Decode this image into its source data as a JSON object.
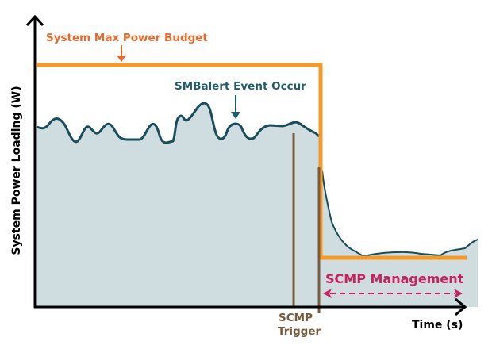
{
  "labels": {
    "y_axis": "System Power Loading (W)",
    "x_axis": "Time (s)",
    "budget": "System Max Power Budget",
    "smbalert": "SMBalert Event Occur",
    "trigger_line1": "SCMP",
    "trigger_line2": "Trigger",
    "management": "SCMP Management"
  },
  "colors": {
    "budget": "#f39a2b",
    "budget_text": "#e8692c",
    "load_line": "#174d5c",
    "load_fill": "#cfdde0",
    "smbalert_text": "#1f5c6b",
    "trigger": "#7a5a3a",
    "management": "#c8215e",
    "axis": "#000000"
  }
}
